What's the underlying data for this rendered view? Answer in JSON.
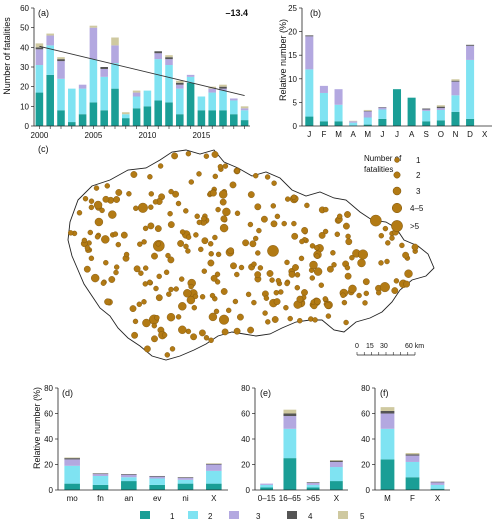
{
  "colors": {
    "c1": "#1a9e96",
    "c2": "#7fe3f2",
    "c3": "#b3a8e0",
    "c4": "#555555",
    "c5": "#cfc9a0",
    "axis": "#222222",
    "trend": "#333333",
    "dot": "#b27a14",
    "dot_edge": "#7a520c",
    "map_fill": "#ffffff",
    "map_edge": "#222222"
  },
  "chart_data": [
    {
      "panel": "(a)",
      "type": "bar",
      "stacked": true,
      "x": [
        2000,
        2001,
        2002,
        2003,
        2004,
        2005,
        2006,
        2007,
        2008,
        2009,
        2010,
        2011,
        2012,
        2013,
        2014,
        2015,
        2016,
        2017,
        2018,
        2019
      ],
      "series": [
        {
          "name": "1",
          "values": [
            17,
            26,
            8,
            2,
            6,
            12,
            8,
            19,
            4,
            9,
            10,
            13,
            12,
            6,
            22,
            8,
            8,
            8,
            6,
            3
          ]
        },
        {
          "name": "2",
          "values": [
            14,
            15,
            16,
            17,
            13,
            22,
            17,
            13,
            2,
            6,
            8,
            21,
            19,
            13,
            3,
            7,
            9,
            10,
            7,
            5
          ]
        },
        {
          "name": "3",
          "values": [
            8,
            5,
            9,
            0,
            2,
            16,
            4,
            9,
            0,
            2,
            0,
            3,
            3,
            2,
            1,
            0,
            2,
            1,
            1,
            1
          ]
        },
        {
          "name": "4",
          "values": [
            1,
            0,
            1,
            0,
            0,
            0,
            1,
            0,
            0,
            0,
            0,
            1,
            1,
            1,
            0,
            0,
            0,
            1,
            0,
            0
          ]
        },
        {
          "name": "5",
          "values": [
            2,
            1,
            1,
            0,
            0,
            1,
            0,
            4,
            1,
            1,
            0,
            0,
            1,
            1,
            0,
            0,
            1,
            1,
            0,
            1
          ]
        }
      ],
      "trend": [
        40.5,
        15.5
      ],
      "annotation": "–13.4",
      "ylabel": "Number of fatalities",
      "ylim": [
        0,
        60
      ],
      "yticks": [
        0,
        10,
        20,
        30,
        40,
        50,
        60
      ],
      "xtick_labels": [
        "2000",
        "2005",
        "2010",
        "2015"
      ]
    },
    {
      "panel": "(b)",
      "type": "bar",
      "stacked": true,
      "categories": [
        "J",
        "F",
        "M",
        "A",
        "M",
        "J",
        "J",
        "A",
        "S",
        "O",
        "N",
        "D",
        "X"
      ],
      "series": [
        {
          "name": "1",
          "values": [
            2,
            1,
            1,
            0,
            0.3,
            1.5,
            7.8,
            6,
            1,
            1.2,
            3,
            1.5,
            0
          ]
        },
        {
          "name": "2",
          "values": [
            10,
            6,
            3.5,
            0.7,
            1.5,
            2,
            0,
            0,
            2.2,
            2.2,
            3.5,
            12.5,
            0
          ]
        },
        {
          "name": "3",
          "values": [
            7,
            1.5,
            3.3,
            0.3,
            1.3,
            0.4,
            0,
            0,
            0.3,
            0.4,
            2.9,
            3,
            0
          ]
        },
        {
          "name": "4",
          "values": [
            0.2,
            0,
            0,
            0,
            0.1,
            0.1,
            0,
            0,
            0.2,
            0.3,
            0.2,
            0.2,
            0
          ]
        },
        {
          "name": "5",
          "values": [
            0,
            0,
            0,
            0.1,
            0.2,
            0,
            0,
            0,
            0,
            0.3,
            0.3,
            0,
            0
          ]
        }
      ],
      "ylabel": "Relative number (%)",
      "ylim": [
        0,
        25
      ],
      "yticks": [
        0,
        5,
        10,
        15,
        20,
        25
      ]
    },
    {
      "panel": "(d)",
      "type": "bar",
      "stacked": true,
      "categories": [
        "mo",
        "fn",
        "an",
        "ev",
        "ni",
        "X"
      ],
      "series": [
        {
          "name": "1",
          "values": [
            5,
            4,
            7,
            4,
            5,
            5
          ]
        },
        {
          "name": "2",
          "values": [
            14,
            7,
            3,
            5,
            3,
            10
          ]
        },
        {
          "name": "3",
          "values": [
            5,
            1.5,
            2,
            1.5,
            1.5,
            5
          ]
        },
        {
          "name": "4",
          "values": [
            1,
            0.5,
            0.5,
            0.5,
            0.5,
            0.5
          ]
        },
        {
          "name": "5",
          "values": [
            0.5,
            0,
            0,
            0,
            0,
            0.5
          ]
        }
      ],
      "ylabel": "Relative number (%)",
      "ylim": [
        0,
        80
      ],
      "yticks": [
        0,
        20,
        40,
        60,
        80
      ]
    },
    {
      "panel": "(e)",
      "type": "bar",
      "stacked": true,
      "categories": [
        "0–15",
        "16–65",
        ">65",
        "X"
      ],
      "series": [
        {
          "name": "1",
          "values": [
            2,
            25,
            2,
            7
          ]
        },
        {
          "name": "2",
          "values": [
            2,
            23,
            2,
            11
          ]
        },
        {
          "name": "3",
          "values": [
            1,
            10,
            1.5,
            4
          ]
        },
        {
          "name": "4",
          "values": [
            0,
            2,
            0.5,
            1
          ]
        },
        {
          "name": "5",
          "values": [
            0,
            3,
            0,
            0.5
          ]
        }
      ],
      "ylim": [
        0,
        80
      ],
      "yticks": [
        0,
        20,
        40,
        60,
        80
      ]
    },
    {
      "panel": "(f)",
      "type": "bar",
      "stacked": true,
      "categories": [
        "M",
        "F",
        "X"
      ],
      "series": [
        {
          "name": "1",
          "values": [
            24,
            10,
            1
          ]
        },
        {
          "name": "2",
          "values": [
            24,
            12,
            3
          ]
        },
        {
          "name": "3",
          "values": [
            12,
            5,
            2
          ]
        },
        {
          "name": "4",
          "values": [
            2,
            1,
            0.5
          ]
        },
        {
          "name": "5",
          "values": [
            3,
            1,
            0
          ]
        }
      ],
      "ylim": [
        0,
        80
      ],
      "yticks": [
        0,
        20,
        40,
        60,
        80
      ]
    }
  ],
  "map": {
    "panel": "(c)",
    "legend_title": [
      "Number of",
      "fatalities"
    ],
    "legend_items": [
      "1",
      "2",
      "3",
      "4–5",
      ">5"
    ],
    "scale_labels": [
      "0",
      "15",
      "30",
      "60 km"
    ]
  },
  "bottom_legend": [
    "1",
    "2",
    "3",
    "4",
    "5"
  ]
}
